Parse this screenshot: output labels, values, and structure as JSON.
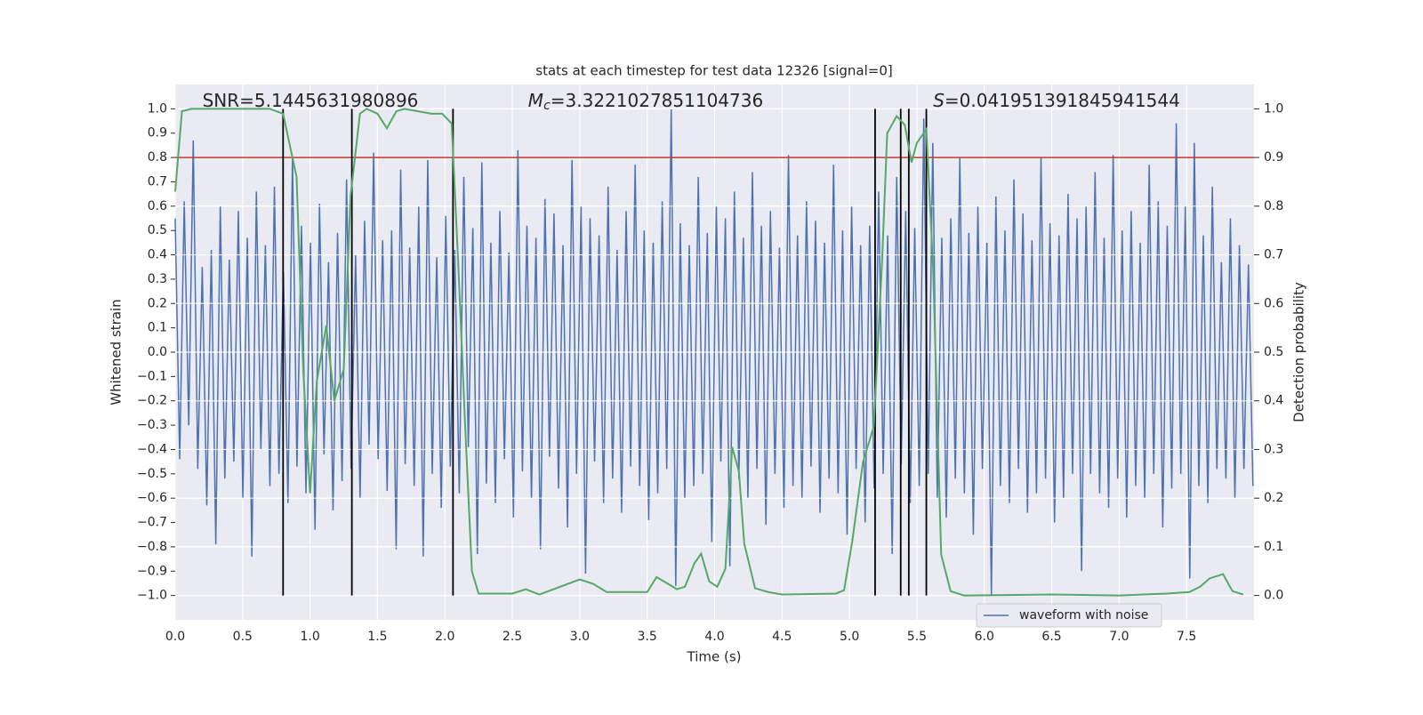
{
  "chart_data": {
    "type": "line",
    "title": "stats at each timestep for test data 12326 [signal=0]",
    "xlabel": "Time (s)",
    "ylabel": "Whitened strain",
    "y2label": "Detection probability",
    "annotations": [
      {
        "text": "SNR=5.1445631980896"
      },
      {
        "symbol": "M",
        "subscript": "c",
        "text": "=3.3221027851104736"
      },
      {
        "symbol": "S",
        "text": "=0.041951391845941544"
      }
    ],
    "xlim": [
      0,
      8
    ],
    "ylim": [
      -1.1,
      1.1
    ],
    "y2lim": [
      -0.05,
      1.05
    ],
    "xticks": [
      {
        "value": 0,
        "label": "0.0"
      },
      {
        "value": 0.5,
        "label": "0.5"
      },
      {
        "value": 1,
        "label": "1.0"
      },
      {
        "value": 1.5,
        "label": "1.5"
      },
      {
        "value": 2,
        "label": "2.0"
      },
      {
        "value": 2.5,
        "label": "2.5"
      },
      {
        "value": 3,
        "label": "3.0"
      },
      {
        "value": 3.5,
        "label": "3.5"
      },
      {
        "value": 4,
        "label": "4.0"
      },
      {
        "value": 4.5,
        "label": "4.5"
      },
      {
        "value": 5,
        "label": "5.0"
      },
      {
        "value": 5.5,
        "label": "5.5"
      },
      {
        "value": 6,
        "label": "6.0"
      },
      {
        "value": 6.5,
        "label": "6.5"
      },
      {
        "value": 7,
        "label": "7.0"
      },
      {
        "value": 7.5,
        "label": "7.5"
      }
    ],
    "yticks": [
      {
        "value": -1,
        "label": "−1.0"
      },
      {
        "value": -0.9,
        "label": "−0.9"
      },
      {
        "value": -0.8,
        "label": "−0.8"
      },
      {
        "value": -0.7,
        "label": "−0.7"
      },
      {
        "value": -0.6,
        "label": "−0.6"
      },
      {
        "value": -0.5,
        "label": "−0.5"
      },
      {
        "value": -0.4,
        "label": "−0.4"
      },
      {
        "value": -0.3,
        "label": "−0.3"
      },
      {
        "value": -0.2,
        "label": "−0.2"
      },
      {
        "value": -0.1,
        "label": "−0.1"
      },
      {
        "value": 0,
        "label": "0.0"
      },
      {
        "value": 0.1,
        "label": "0.1"
      },
      {
        "value": 0.2,
        "label": "0.2"
      },
      {
        "value": 0.3,
        "label": "0.3"
      },
      {
        "value": 0.4,
        "label": "0.4"
      },
      {
        "value": 0.5,
        "label": "0.5"
      },
      {
        "value": 0.6,
        "label": "0.6"
      },
      {
        "value": 0.7,
        "label": "0.7"
      },
      {
        "value": 0.8,
        "label": "0.8"
      },
      {
        "value": 0.9,
        "label": "0.9"
      },
      {
        "value": 1,
        "label": "1.0"
      }
    ],
    "y2ticks": [
      {
        "value": 0,
        "label": "0.0"
      },
      {
        "value": 0.1,
        "label": "0.1"
      },
      {
        "value": 0.2,
        "label": "0.2"
      },
      {
        "value": 0.3,
        "label": "0.3"
      },
      {
        "value": 0.4,
        "label": "0.4"
      },
      {
        "value": 0.5,
        "label": "0.5"
      },
      {
        "value": 0.6,
        "label": "0.6"
      },
      {
        "value": 0.7,
        "label": "0.7"
      },
      {
        "value": 0.8,
        "label": "0.8"
      },
      {
        "value": 0.9,
        "label": "0.9"
      },
      {
        "value": 1,
        "label": "1.0"
      }
    ],
    "grid": true,
    "series": [
      {
        "name": "waveform with noise",
        "color": "#4c72b0",
        "values": [
          0.55,
          -0.44,
          0.62,
          -0.3,
          0.87,
          -0.48,
          0.35,
          -0.63,
          0.42,
          -0.79,
          0.6,
          -0.52,
          0.38,
          -0.45,
          0.58,
          -0.6,
          0.47,
          -0.84,
          0.66,
          -0.4,
          0.44,
          -0.55,
          0.68,
          -0.5,
          0.33,
          -0.62,
          0.8,
          -0.47,
          0.52,
          -0.58,
          0.45,
          -0.73,
          0.61,
          -0.42,
          0.37,
          -0.65,
          0.49,
          -0.53,
          0.71,
          -0.48,
          0.4,
          -0.6,
          0.54,
          -0.38,
          0.82,
          -0.44,
          0.46,
          -0.57,
          0.5,
          -0.81,
          0.75,
          -0.46,
          0.43,
          -0.55,
          0.6,
          -0.84,
          0.79,
          -0.5,
          0.39,
          -0.64,
          0.56,
          -0.47,
          0.42,
          -0.58,
          0.72,
          -0.39,
          0.51,
          -0.83,
          0.78,
          -0.54,
          0.45,
          -0.62,
          0.58,
          -0.44,
          0.41,
          -0.68,
          0.83,
          -0.49,
          0.52,
          -0.6,
          0.47,
          -0.81,
          0.63,
          -0.43,
          0.57,
          -0.56,
          0.44,
          -0.72,
          0.79,
          -0.5,
          0.6,
          -0.91,
          0.55,
          -0.45,
          0.48,
          -0.62,
          0.68,
          -0.52,
          0.42,
          -0.66,
          0.58,
          -0.47,
          0.77,
          -0.55,
          0.5,
          -0.69,
          0.45,
          -0.58,
          0.62,
          -0.48,
          1.0,
          -0.96,
          0.53,
          -0.6,
          0.44,
          -0.55,
          0.72,
          -0.5,
          0.49,
          -0.78,
          0.6,
          -0.45,
          0.55,
          -0.88,
          0.66,
          -0.52,
          0.47,
          -0.6,
          0.74,
          -0.48,
          0.52,
          -0.71,
          0.58,
          -0.5,
          0.43,
          -0.64,
          0.81,
          -0.55,
          0.48,
          -0.6,
          0.62,
          -0.47,
          0.54,
          -0.66,
          0.45,
          -0.52,
          0.77,
          -0.58,
          0.5,
          -0.75,
          0.6,
          -0.48,
          0.44,
          -0.7,
          0.52,
          -0.56,
          0.66,
          -0.5,
          0.48,
          -0.83,
          0.72,
          -0.46,
          0.58,
          -0.62,
          0.51,
          -0.55,
          0.96,
          -0.5,
          0.86,
          -0.6,
          0.47,
          -0.68,
          0.55,
          -0.52,
          0.8,
          -0.58,
          0.49,
          -0.75,
          0.6,
          -0.48,
          0.45,
          -1.0,
          0.64,
          -0.55,
          0.5,
          -0.62,
          0.71,
          -0.48,
          0.57,
          -0.66,
          0.46,
          -0.58,
          0.8,
          -0.52,
          0.53,
          -0.7,
          0.48,
          -0.6,
          0.65,
          -0.5,
          0.55,
          -0.9,
          0.6,
          -0.5,
          0.74,
          -0.58,
          0.47,
          -0.64,
          0.81,
          -0.52,
          0.5,
          -0.68,
          0.58,
          -0.55,
          0.45,
          -0.6,
          0.77,
          -0.5,
          0.62,
          -0.72,
          0.52,
          -0.56,
          0.94,
          -0.5,
          0.6,
          -0.93,
          0.86,
          -0.55,
          0.48,
          -0.62,
          0.68,
          -0.48,
          0.37,
          -0.52,
          0.55,
          -0.6,
          0.44,
          -0.48,
          0.36,
          -0.55
        ]
      },
      {
        "color": "#55a868",
        "axis": "y2",
        "x": [
          0,
          0.05,
          0.12,
          0.7,
          0.8,
          0.9,
          0.95,
          1.0,
          1.05,
          1.12,
          1.18,
          1.25,
          1.3,
          1.37,
          1.42,
          1.5,
          1.57,
          1.64,
          1.7,
          1.9,
          1.98,
          2.05,
          2.1,
          2.15,
          2.2,
          2.25,
          2.5,
          2.6,
          2.7,
          3.0,
          3.1,
          3.2,
          3.5,
          3.57,
          3.72,
          3.78,
          3.85,
          3.9,
          3.96,
          4.02,
          4.08,
          4.13,
          4.18,
          4.22,
          4.3,
          4.4,
          4.5,
          4.9,
          4.96,
          5.02,
          5.1,
          5.18,
          5.24,
          5.28,
          5.35,
          5.41,
          5.46,
          5.5,
          5.57,
          5.62,
          5.68,
          5.75,
          5.85,
          6.5,
          7.0,
          7.35,
          7.52,
          7.6,
          7.67,
          7.77,
          7.84,
          7.92
        ],
        "values": [
          0.83,
          0.995,
          1.0,
          1.0,
          0.99,
          0.86,
          0.46,
          0.21,
          0.44,
          0.555,
          0.4,
          0.465,
          0.82,
          0.99,
          1.0,
          0.99,
          0.96,
          0.995,
          1.0,
          0.99,
          0.99,
          0.97,
          0.675,
          0.35,
          0.05,
          0.004,
          0.004,
          0.013,
          0.002,
          0.033,
          0.024,
          0.007,
          0.007,
          0.038,
          0.013,
          0.018,
          0.066,
          0.086,
          0.029,
          0.018,
          0.055,
          0.305,
          0.255,
          0.106,
          0.015,
          0.007,
          0.002,
          0.004,
          0.011,
          0.11,
          0.274,
          0.347,
          0.675,
          0.95,
          0.985,
          0.967,
          0.89,
          0.93,
          0.958,
          0.675,
          0.084,
          0.009,
          0,
          0.002,
          0,
          0.004,
          0.007,
          0.018,
          0.035,
          0.044,
          0.009,
          0.002
        ]
      }
    ],
    "threshold": {
      "value": 0.9,
      "axis": "y2",
      "color": "#c0392b"
    },
    "vlines": {
      "x": [
        0.8,
        1.31,
        2.06,
        5.19,
        5.38,
        5.44,
        5.57
      ],
      "color": "#000000"
    }
  }
}
